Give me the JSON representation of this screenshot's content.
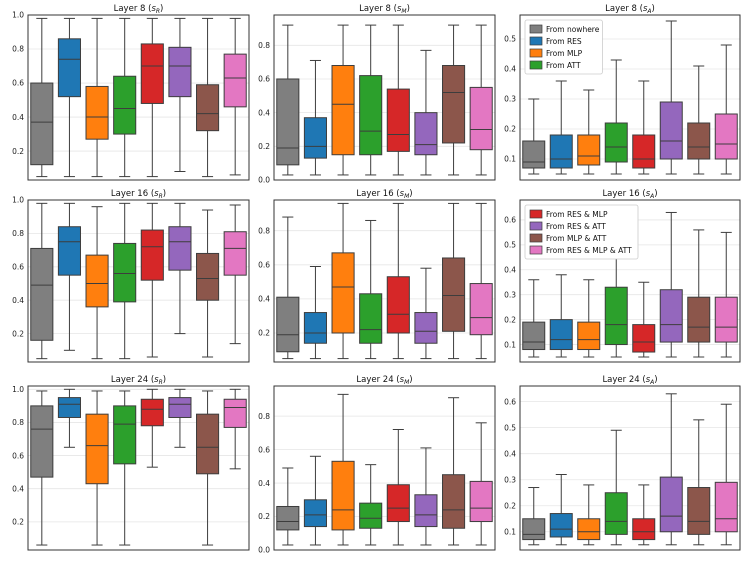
{
  "colors": {
    "nowhere": "#7f7f7f",
    "res": "#1f77b4",
    "mlp": "#ff7f0e",
    "att": "#2ca02c",
    "res_mlp": "#d62728",
    "res_att": "#9467bd",
    "mlp_att": "#8c564b",
    "res_mlp_att": "#e377c2"
  },
  "legend_a": [
    "From nowhere",
    "From RES",
    "From MLP",
    "From ATT"
  ],
  "legend_b": [
    "From RES & MLP",
    "From RES & ATT",
    "From MLP & ATT",
    "From RES & MLP & ATT"
  ],
  "chart_data": [
    {
      "type": "box",
      "title": "Layer 8 (sR)",
      "title_main": "Layer 8 (",
      "title_sym": "s",
      "title_sub": "R",
      "title_end": ")",
      "ylim": [
        0.03,
        1.0
      ],
      "yticks": [
        0.2,
        0.4,
        0.6,
        0.8,
        1.0
      ],
      "boxes": [
        {
          "series": "From nowhere",
          "whislo": 0.05,
          "q1": 0.12,
          "med": 0.37,
          "q3": 0.6,
          "whishi": 0.98
        },
        {
          "series": "From RES",
          "whislo": 0.05,
          "q1": 0.52,
          "med": 0.74,
          "q3": 0.86,
          "whishi": 0.98
        },
        {
          "series": "From MLP",
          "whislo": 0.05,
          "q1": 0.27,
          "med": 0.4,
          "q3": 0.58,
          "whishi": 0.98
        },
        {
          "series": "From ATT",
          "whislo": 0.05,
          "q1": 0.3,
          "med": 0.45,
          "q3": 0.64,
          "whishi": 0.98
        },
        {
          "series": "From RES & MLP",
          "whislo": 0.05,
          "q1": 0.48,
          "med": 0.7,
          "q3": 0.83,
          "whishi": 0.98
        },
        {
          "series": "From RES & ATT",
          "whislo": 0.08,
          "q1": 0.52,
          "med": 0.7,
          "q3": 0.81,
          "whishi": 0.98
        },
        {
          "series": "From MLP & ATT",
          "whislo": 0.05,
          "q1": 0.32,
          "med": 0.42,
          "q3": 0.59,
          "whishi": 0.98
        },
        {
          "series": "From RES & MLP & ATT",
          "whislo": 0.06,
          "q1": 0.46,
          "med": 0.63,
          "q3": 0.77,
          "whishi": 0.98
        }
      ]
    },
    {
      "type": "box",
      "title": "Layer 8 (sM)",
      "title_main": "Layer 8 (",
      "title_sym": "s",
      "title_sub": "M",
      "title_end": ")",
      "ylim": [
        0.0,
        0.98
      ],
      "yticks": [
        0.0,
        0.2,
        0.4,
        0.6,
        0.8
      ],
      "boxes": [
        {
          "series": "From nowhere",
          "whislo": 0.03,
          "q1": 0.09,
          "med": 0.19,
          "q3": 0.6,
          "whishi": 0.92
        },
        {
          "series": "From RES",
          "whislo": 0.03,
          "q1": 0.13,
          "med": 0.2,
          "q3": 0.37,
          "whishi": 0.71
        },
        {
          "series": "From MLP",
          "whislo": 0.03,
          "q1": 0.15,
          "med": 0.45,
          "q3": 0.68,
          "whishi": 0.92
        },
        {
          "series": "From ATT",
          "whislo": 0.03,
          "q1": 0.15,
          "med": 0.29,
          "q3": 0.62,
          "whishi": 0.92
        },
        {
          "series": "From RES & MLP",
          "whislo": 0.03,
          "q1": 0.17,
          "med": 0.27,
          "q3": 0.54,
          "whishi": 0.92
        },
        {
          "series": "From RES & ATT",
          "whislo": 0.03,
          "q1": 0.15,
          "med": 0.21,
          "q3": 0.4,
          "whishi": 0.77
        },
        {
          "series": "From MLP & ATT",
          "whislo": 0.03,
          "q1": 0.22,
          "med": 0.52,
          "q3": 0.68,
          "whishi": 0.92
        },
        {
          "series": "From RES & MLP & ATT",
          "whislo": 0.03,
          "q1": 0.18,
          "med": 0.3,
          "q3": 0.55,
          "whishi": 0.92
        }
      ]
    },
    {
      "type": "box",
      "title": "Layer 8 (sA)",
      "title_main": "Layer 8 (",
      "title_sym": "s",
      "title_sub": "A",
      "title_end": ")",
      "ylim": [
        0.03,
        0.58
      ],
      "yticks": [
        0.1,
        0.2,
        0.3,
        0.4,
        0.5
      ],
      "legend": "legend_a",
      "boxes": [
        {
          "series": "From nowhere",
          "whislo": 0.05,
          "q1": 0.07,
          "med": 0.09,
          "q3": 0.16,
          "whishi": 0.3
        },
        {
          "series": "From RES",
          "whislo": 0.05,
          "q1": 0.07,
          "med": 0.1,
          "q3": 0.18,
          "whishi": 0.36
        },
        {
          "series": "From MLP",
          "whislo": 0.05,
          "q1": 0.08,
          "med": 0.11,
          "q3": 0.18,
          "whishi": 0.33
        },
        {
          "series": "From ATT",
          "whislo": 0.05,
          "q1": 0.09,
          "med": 0.14,
          "q3": 0.22,
          "whishi": 0.43
        },
        {
          "series": "From RES & MLP",
          "whislo": 0.05,
          "q1": 0.07,
          "med": 0.1,
          "q3": 0.18,
          "whishi": 0.36
        },
        {
          "series": "From RES & ATT",
          "whislo": 0.05,
          "q1": 0.1,
          "med": 0.16,
          "q3": 0.29,
          "whishi": 0.56
        },
        {
          "series": "From MLP & ATT",
          "whislo": 0.05,
          "q1": 0.1,
          "med": 0.14,
          "q3": 0.22,
          "whishi": 0.41
        },
        {
          "series": "From RES & MLP & ATT",
          "whislo": 0.05,
          "q1": 0.1,
          "med": 0.15,
          "q3": 0.25,
          "whishi": 0.48
        }
      ]
    },
    {
      "type": "box",
      "title": "Layer 16 (sR)",
      "title_main": "Layer 16 (",
      "title_sym": "s",
      "title_sub": "R",
      "title_end": ")",
      "ylim": [
        0.03,
        1.0
      ],
      "yticks": [
        0.2,
        0.4,
        0.6,
        0.8,
        1.0
      ],
      "boxes": [
        {
          "series": "From nowhere",
          "whislo": 0.05,
          "q1": 0.16,
          "med": 0.49,
          "q3": 0.71,
          "whishi": 0.98
        },
        {
          "series": "From RES",
          "whislo": 0.1,
          "q1": 0.55,
          "med": 0.75,
          "q3": 0.84,
          "whishi": 0.98
        },
        {
          "series": "From MLP",
          "whislo": 0.05,
          "q1": 0.36,
          "med": 0.5,
          "q3": 0.67,
          "whishi": 0.96
        },
        {
          "series": "From ATT",
          "whislo": 0.05,
          "q1": 0.39,
          "med": 0.56,
          "q3": 0.74,
          "whishi": 0.98
        },
        {
          "series": "From RES & MLP",
          "whislo": 0.06,
          "q1": 0.52,
          "med": 0.72,
          "q3": 0.82,
          "whishi": 0.98
        },
        {
          "series": "From RES & ATT",
          "whislo": 0.2,
          "q1": 0.58,
          "med": 0.75,
          "q3": 0.84,
          "whishi": 0.98
        },
        {
          "series": "From MLP & ATT",
          "whislo": 0.06,
          "q1": 0.4,
          "med": 0.53,
          "q3": 0.68,
          "whishi": 0.94
        },
        {
          "series": "From RES & MLP & ATT",
          "whislo": 0.14,
          "q1": 0.55,
          "med": 0.71,
          "q3": 0.81,
          "whishi": 0.97
        }
      ]
    },
    {
      "type": "box",
      "title": "Layer 16 (sM)",
      "title_main": "Layer 16 (",
      "title_sym": "s",
      "title_sub": "M",
      "title_end": ")",
      "ylim": [
        0.03,
        0.98
      ],
      "yticks": [
        0.2,
        0.4,
        0.6,
        0.8
      ],
      "boxes": [
        {
          "series": "From nowhere",
          "whislo": 0.05,
          "q1": 0.09,
          "med": 0.19,
          "q3": 0.41,
          "whishi": 0.88
        },
        {
          "series": "From RES",
          "whislo": 0.05,
          "q1": 0.14,
          "med": 0.2,
          "q3": 0.32,
          "whishi": 0.59
        },
        {
          "series": "From MLP",
          "whislo": 0.05,
          "q1": 0.2,
          "med": 0.47,
          "q3": 0.67,
          "whishi": 0.96
        },
        {
          "series": "From ATT",
          "whislo": 0.05,
          "q1": 0.14,
          "med": 0.22,
          "q3": 0.43,
          "whishi": 0.86
        },
        {
          "series": "From RES & MLP",
          "whislo": 0.05,
          "q1": 0.2,
          "med": 0.31,
          "q3": 0.53,
          "whishi": 0.96
        },
        {
          "series": "From RES & ATT",
          "whislo": 0.05,
          "q1": 0.14,
          "med": 0.21,
          "q3": 0.32,
          "whishi": 0.58
        },
        {
          "series": "From MLP & ATT",
          "whislo": 0.05,
          "q1": 0.21,
          "med": 0.42,
          "q3": 0.64,
          "whishi": 0.96
        },
        {
          "series": "From RES & MLP & ATT",
          "whislo": 0.05,
          "q1": 0.19,
          "med": 0.29,
          "q3": 0.49,
          "whishi": 0.96
        }
      ]
    },
    {
      "type": "box",
      "title": "Layer 16 (sA)",
      "title_main": "Layer 16 (",
      "title_sym": "s",
      "title_sub": "A",
      "title_end": ")",
      "ylim": [
        0.03,
        0.68
      ],
      "yticks": [
        0.1,
        0.2,
        0.3,
        0.4,
        0.5,
        0.6
      ],
      "legend": "legend_b",
      "boxes": [
        {
          "series": "From nowhere",
          "whislo": 0.05,
          "q1": 0.08,
          "med": 0.11,
          "q3": 0.19,
          "whishi": 0.36
        },
        {
          "series": "From RES",
          "whislo": 0.05,
          "q1": 0.08,
          "med": 0.12,
          "q3": 0.2,
          "whishi": 0.38
        },
        {
          "series": "From MLP",
          "whislo": 0.05,
          "q1": 0.08,
          "med": 0.12,
          "q3": 0.19,
          "whishi": 0.36
        },
        {
          "series": "From ATT",
          "whislo": 0.05,
          "q1": 0.1,
          "med": 0.18,
          "q3": 0.33,
          "whishi": 0.58
        },
        {
          "series": "From RES & MLP",
          "whislo": 0.05,
          "q1": 0.07,
          "med": 0.11,
          "q3": 0.18,
          "whishi": 0.35
        },
        {
          "series": "From RES & ATT",
          "whislo": 0.05,
          "q1": 0.11,
          "med": 0.18,
          "q3": 0.32,
          "whishi": 0.63
        },
        {
          "series": "From MLP & ATT",
          "whislo": 0.05,
          "q1": 0.11,
          "med": 0.17,
          "q3": 0.29,
          "whishi": 0.56
        },
        {
          "series": "From RES & MLP & ATT",
          "whislo": 0.05,
          "q1": 0.11,
          "med": 0.17,
          "q3": 0.29,
          "whishi": 0.55
        }
      ]
    },
    {
      "type": "box",
      "title": "Layer 24 (sR)",
      "title_main": "Layer 24 (",
      "title_sym": "s",
      "title_sub": "R",
      "title_end": ")",
      "ylim": [
        0.03,
        1.02
      ],
      "yticks": [
        0.2,
        0.4,
        0.6,
        0.8,
        1.0
      ],
      "boxes": [
        {
          "series": "From nowhere",
          "whislo": 0.06,
          "q1": 0.47,
          "med": 0.76,
          "q3": 0.9,
          "whishi": 0.99
        },
        {
          "series": "From RES",
          "whislo": 0.65,
          "q1": 0.83,
          "med": 0.91,
          "q3": 0.95,
          "whishi": 1.0
        },
        {
          "series": "From MLP",
          "whislo": 0.06,
          "q1": 0.43,
          "med": 0.66,
          "q3": 0.85,
          "whishi": 0.99
        },
        {
          "series": "From ATT",
          "whislo": 0.06,
          "q1": 0.55,
          "med": 0.79,
          "q3": 0.9,
          "whishi": 0.99
        },
        {
          "series": "From RES & MLP",
          "whislo": 0.53,
          "q1": 0.78,
          "med": 0.88,
          "q3": 0.94,
          "whishi": 1.0
        },
        {
          "series": "From RES & ATT",
          "whislo": 0.65,
          "q1": 0.83,
          "med": 0.91,
          "q3": 0.95,
          "whishi": 1.0
        },
        {
          "series": "From MLP & ATT",
          "whislo": 0.06,
          "q1": 0.49,
          "med": 0.65,
          "q3": 0.85,
          "whishi": 0.99
        },
        {
          "series": "From RES & MLP & ATT",
          "whislo": 0.52,
          "q1": 0.77,
          "med": 0.89,
          "q3": 0.94,
          "whishi": 1.0
        }
      ]
    },
    {
      "type": "box",
      "title": "Layer 24 (sM)",
      "title_main": "Layer 24 (",
      "title_sym": "s",
      "title_sub": "M",
      "title_end": ")",
      "ylim": [
        0.0,
        0.98
      ],
      "yticks": [
        0.0,
        0.2,
        0.4,
        0.6,
        0.8
      ],
      "boxes": [
        {
          "series": "From nowhere",
          "whislo": 0.03,
          "q1": 0.12,
          "med": 0.17,
          "q3": 0.26,
          "whishi": 0.49
        },
        {
          "series": "From RES",
          "whislo": 0.03,
          "q1": 0.14,
          "med": 0.21,
          "q3": 0.3,
          "whishi": 0.56
        },
        {
          "series": "From MLP",
          "whislo": 0.03,
          "q1": 0.12,
          "med": 0.24,
          "q3": 0.53,
          "whishi": 0.93
        },
        {
          "series": "From ATT",
          "whislo": 0.03,
          "q1": 0.13,
          "med": 0.19,
          "q3": 0.28,
          "whishi": 0.51
        },
        {
          "series": "From RES & MLP",
          "whislo": 0.03,
          "q1": 0.17,
          "med": 0.25,
          "q3": 0.39,
          "whishi": 0.72
        },
        {
          "series": "From RES & ATT",
          "whislo": 0.03,
          "q1": 0.14,
          "med": 0.21,
          "q3": 0.33,
          "whishi": 0.61
        },
        {
          "series": "From MLP & ATT",
          "whislo": 0.03,
          "q1": 0.13,
          "med": 0.24,
          "q3": 0.45,
          "whishi": 0.91
        },
        {
          "series": "From RES & MLP & ATT",
          "whislo": 0.03,
          "q1": 0.17,
          "med": 0.25,
          "q3": 0.41,
          "whishi": 0.76
        }
      ]
    },
    {
      "type": "box",
      "title": "Layer 24 (sA)",
      "title_main": "Layer 24 (",
      "title_sym": "s",
      "title_sub": "A",
      "title_end": ")",
      "ylim": [
        0.03,
        0.66
      ],
      "yticks": [
        0.1,
        0.2,
        0.3,
        0.4,
        0.5,
        0.6
      ],
      "boxes": [
        {
          "series": "From nowhere",
          "whislo": 0.05,
          "q1": 0.07,
          "med": 0.09,
          "q3": 0.15,
          "whishi": 0.27
        },
        {
          "series": "From RES",
          "whislo": 0.05,
          "q1": 0.08,
          "med": 0.11,
          "q3": 0.17,
          "whishi": 0.32
        },
        {
          "series": "From MLP",
          "whislo": 0.05,
          "q1": 0.07,
          "med": 0.1,
          "q3": 0.15,
          "whishi": 0.28
        },
        {
          "series": "From ATT",
          "whislo": 0.05,
          "q1": 0.09,
          "med": 0.14,
          "q3": 0.25,
          "whishi": 0.49
        },
        {
          "series": "From RES & MLP",
          "whislo": 0.05,
          "q1": 0.07,
          "med": 0.1,
          "q3": 0.15,
          "whishi": 0.28
        },
        {
          "series": "From RES & ATT",
          "whislo": 0.05,
          "q1": 0.1,
          "med": 0.16,
          "q3": 0.31,
          "whishi": 0.63
        },
        {
          "series": "From MLP & ATT",
          "whislo": 0.05,
          "q1": 0.09,
          "med": 0.14,
          "q3": 0.27,
          "whishi": 0.53
        },
        {
          "series": "From RES & MLP & ATT",
          "whislo": 0.05,
          "q1": 0.1,
          "med": 0.15,
          "q3": 0.29,
          "whishi": 0.59
        }
      ]
    }
  ]
}
